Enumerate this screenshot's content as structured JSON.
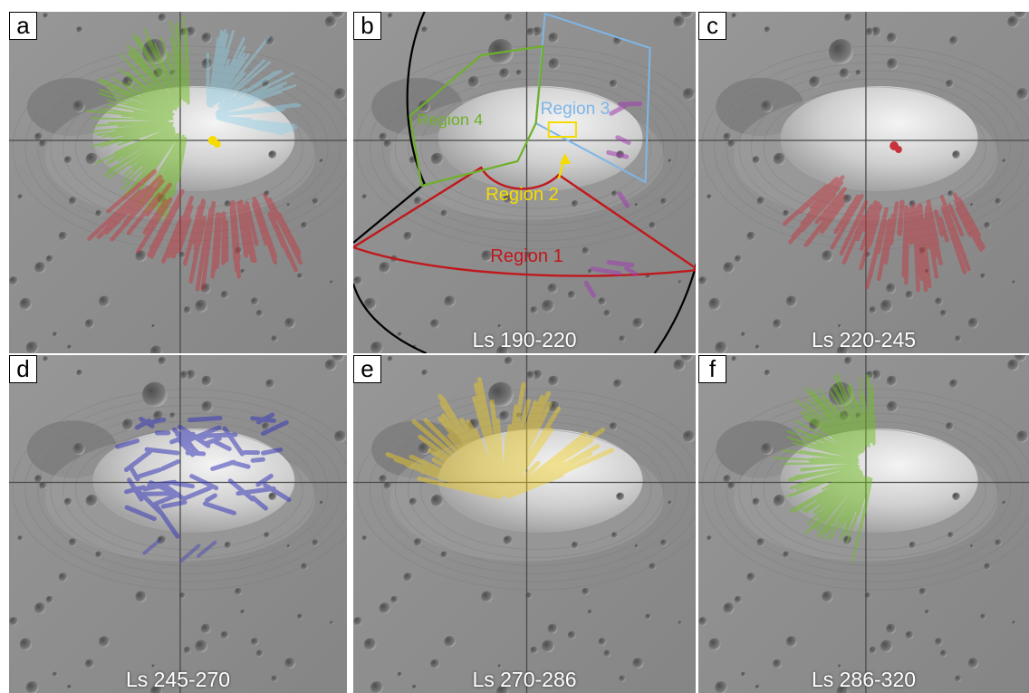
{
  "panels": [
    {
      "letter": "a",
      "season": "",
      "streaks": [
        {
          "color": "#6fbf20",
          "region": "4"
        },
        {
          "color": "#8fd0e8",
          "region": "3"
        },
        {
          "color": "#f5dc00",
          "region": "2"
        },
        {
          "color": "#c8323a",
          "region": "1"
        }
      ]
    },
    {
      "letter": "b",
      "season": "Ls 190-220",
      "regions": [
        {
          "label": "Region 1",
          "color": "#c0181c"
        },
        {
          "label": "Region 2",
          "color": "#f5dc00"
        },
        {
          "label": "Region 3",
          "color": "#7fb6e6"
        },
        {
          "label": "Region 4",
          "color": "#6fb02a"
        }
      ],
      "streaks": [
        {
          "color": "#a040b0",
          "region": "all"
        }
      ]
    },
    {
      "letter": "c",
      "season": "Ls 220-245",
      "streaks": [
        {
          "color": "#c8323a",
          "region": "1"
        }
      ]
    },
    {
      "letter": "d",
      "season": "Ls 245-270",
      "streaks": [
        {
          "color": "#3a3ab8",
          "region": "3"
        }
      ]
    },
    {
      "letter": "e",
      "season": "Ls 270-286",
      "streaks": [
        {
          "color": "#f0cc20",
          "region": "2"
        }
      ]
    },
    {
      "letter": "f",
      "season": "Ls 286-320",
      "streaks": [
        {
          "color": "#6fbf20",
          "region": "4"
        }
      ]
    }
  ],
  "colors": {
    "grid": "#4a4a4a",
    "outline": "#000000",
    "ls_text": "#ffffff"
  }
}
